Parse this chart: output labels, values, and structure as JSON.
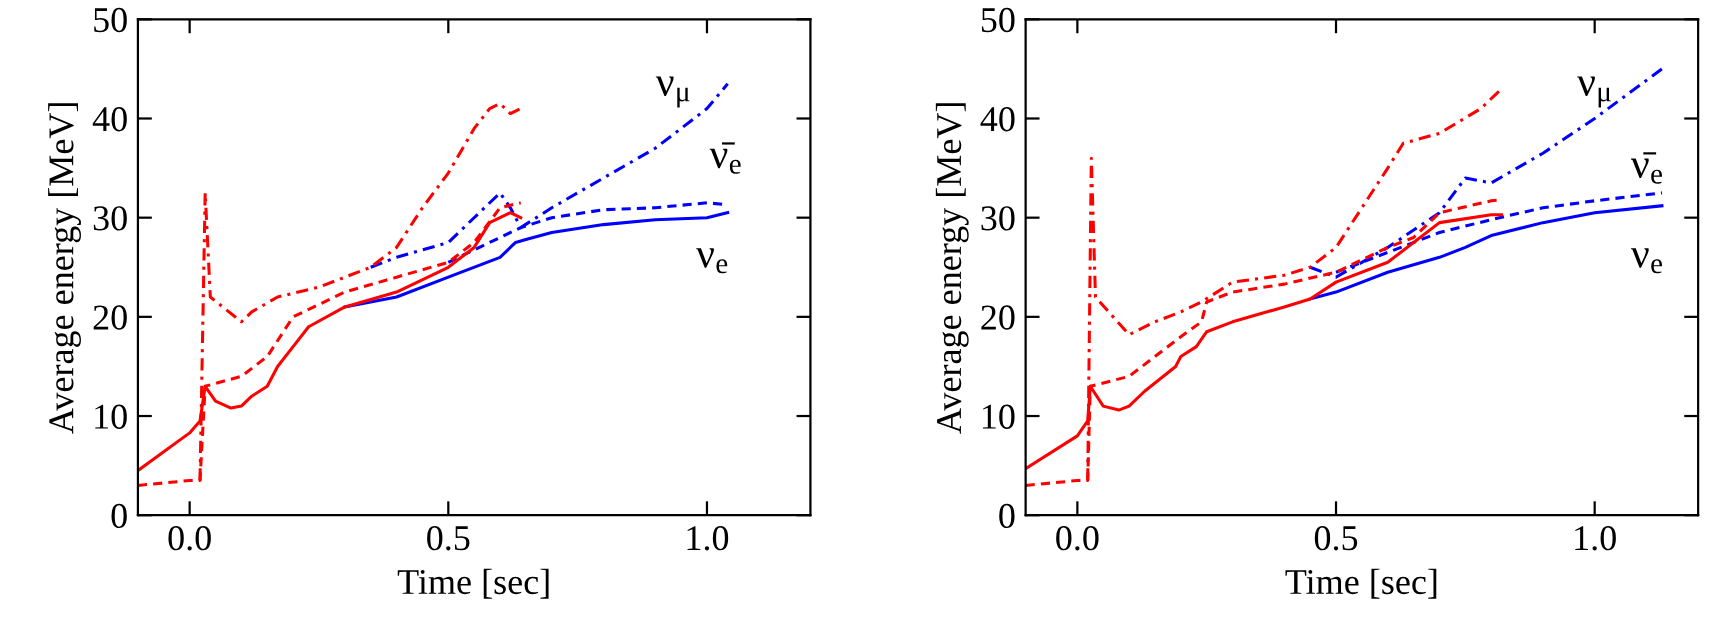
{
  "chart_data": [
    {
      "type": "line",
      "xlabel": "Time [sec]",
      "ylabel": "Average energy [MeV]",
      "xlim": [
        -0.1,
        1.2
      ],
      "ylim": [
        0,
        50
      ],
      "xticks": [
        {
          "value": 0.0,
          "label": "0.0"
        },
        {
          "value": 0.5,
          "label": "0.5"
        },
        {
          "value": 1.0,
          "label": "1.0"
        }
      ],
      "yticks": [
        0,
        10,
        20,
        30,
        40,
        50
      ],
      "grid": false,
      "legend": false,
      "annotations": [
        "ν$_{μ}$",
        "ν̄$_{e}$",
        "ν$_{e}$"
      ],
      "series": [
        {
          "color": "#0000ff",
          "line_style": "solid",
          "x": [
            0.3,
            0.4,
            0.5,
            0.6,
            0.63,
            0.65,
            0.7,
            0.8,
            0.9,
            1.0,
            1.04
          ],
          "values": [
            21,
            22,
            24,
            26,
            27.5,
            27.8,
            28.5,
            29.3,
            29.8,
            30,
            30.5
          ]
        },
        {
          "color": "#0000ff",
          "line_style": "dashed",
          "x": [
            0.5,
            0.6,
            0.64,
            0.7,
            0.8,
            0.9,
            1.0,
            1.04
          ],
          "values": [
            25.5,
            28,
            29,
            30,
            30.8,
            31,
            31.5,
            31.3
          ]
        },
        {
          "color": "#0000ff",
          "line_style": "dashdot",
          "x": [
            0.35,
            0.4,
            0.5,
            0.6,
            0.62,
            0.64,
            0.7,
            0.8,
            0.9,
            1.0,
            1.04
          ],
          "values": [
            25,
            26,
            27.5,
            32.5,
            31,
            29,
            31,
            34,
            37,
            41,
            43.5
          ]
        },
        {
          "color": "#ff0000",
          "line_style": "solid",
          "x": [
            -0.1,
            0.0,
            0.02,
            0.03,
            0.05,
            0.08,
            0.1,
            0.12,
            0.15,
            0.17,
            0.2,
            0.23,
            0.3,
            0.4,
            0.5,
            0.55,
            0.58,
            0.62,
            0.64
          ],
          "values": [
            4.5,
            8.3,
            9.5,
            13,
            11.5,
            10.8,
            11,
            12,
            13,
            15,
            17,
            19,
            21,
            22.5,
            25,
            27,
            29.5,
            30.5,
            30
          ]
        },
        {
          "color": "#ff0000",
          "line_style": "dashed",
          "x": [
            -0.1,
            0.0,
            0.02,
            0.03,
            0.1,
            0.15,
            0.2,
            0.3,
            0.4,
            0.5,
            0.55,
            0.6,
            0.64
          ],
          "values": [
            3,
            3.5,
            3.5,
            13,
            14,
            16,
            20,
            22.5,
            24,
            25.5,
            27.5,
            31,
            31.5
          ]
        },
        {
          "color": "#ff0000",
          "line_style": "dashdot",
          "x": [
            0.02,
            0.03,
            0.04,
            0.1,
            0.12,
            0.17,
            0.25,
            0.35,
            0.4,
            0.45,
            0.5,
            0.55,
            0.58,
            0.6,
            0.62,
            0.64
          ],
          "values": [
            3.5,
            32.5,
            22,
            19.5,
            20.5,
            22,
            23,
            25,
            27,
            31,
            34.5,
            39,
            41,
            41.5,
            40.5,
            41
          ]
        }
      ]
    },
    {
      "type": "line",
      "xlabel": "Time [sec]",
      "ylabel": "Average energy [MeV]",
      "xlim": [
        -0.1,
        1.2
      ],
      "ylim": [
        0,
        50
      ],
      "xticks": [
        {
          "value": 0.0,
          "label": "0.0"
        },
        {
          "value": 0.5,
          "label": "0.5"
        },
        {
          "value": 1.0,
          "label": "1.0"
        }
      ],
      "yticks": [
        0,
        10,
        20,
        30,
        40,
        50
      ],
      "grid": false,
      "legend": false,
      "annotations": [
        "ν$_{μ}$",
        "ν̄$_{e}$",
        "ν$_{e}$"
      ],
      "series": [
        {
          "color": "#0000ff",
          "line_style": "solid",
          "x": [
            0.45,
            0.5,
            0.6,
            0.7,
            0.75,
            0.8,
            0.9,
            1.0,
            1.13
          ],
          "values": [
            21.8,
            22.5,
            24.5,
            26,
            27,
            28.2,
            29.5,
            30.5,
            31.2
          ]
        },
        {
          "color": "#0000ff",
          "line_style": "dashed",
          "x": [
            0.5,
            0.6,
            0.7,
            0.8,
            0.9,
            1.0,
            1.13
          ],
          "values": [
            24.5,
            26.5,
            28.5,
            29.8,
            31,
            31.7,
            32.5
          ]
        },
        {
          "color": "#0000ff",
          "line_style": "dashdot",
          "x": [
            0.45,
            0.5,
            0.6,
            0.7,
            0.75,
            0.8,
            0.9,
            1.0,
            1.13
          ],
          "values": [
            25,
            24,
            27,
            30.5,
            34,
            33.5,
            36.5,
            40,
            45
          ]
        },
        {
          "color": "#ff0000",
          "line_style": "solid",
          "x": [
            -0.1,
            0.0,
            0.02,
            0.025,
            0.05,
            0.08,
            0.1,
            0.13,
            0.19,
            0.2,
            0.23,
            0.25,
            0.3,
            0.4,
            0.45,
            0.5,
            0.6,
            0.65,
            0.7,
            0.8,
            0.82
          ],
          "values": [
            4.7,
            8,
            9.5,
            13,
            11,
            10.6,
            11,
            12.5,
            15,
            16,
            17,
            18.5,
            19.5,
            21,
            21.8,
            23.5,
            25.5,
            27.5,
            29.5,
            30.3,
            30.3
          ]
        },
        {
          "color": "#ff0000",
          "line_style": "dashed",
          "x": [
            -0.1,
            0.0,
            0.02,
            0.025,
            0.1,
            0.2,
            0.24,
            0.25,
            0.3,
            0.4,
            0.5,
            0.6,
            0.65,
            0.7,
            0.8,
            0.82
          ],
          "values": [
            3,
            3.5,
            3.5,
            13,
            14,
            18,
            19.5,
            21.5,
            22.5,
            23.3,
            24.5,
            27,
            28,
            30.5,
            31.7,
            31.8
          ]
        },
        {
          "color": "#ff0000",
          "line_style": "dashdot",
          "x": [
            0.02,
            0.027,
            0.035,
            0.1,
            0.15,
            0.2,
            0.24,
            0.3,
            0.4,
            0.45,
            0.5,
            0.55,
            0.6,
            0.63,
            0.7,
            0.78,
            0.82
          ],
          "values": [
            3.5,
            36,
            22,
            18.2,
            19.5,
            20.5,
            21.5,
            23.5,
            24.2,
            25,
            27,
            31,
            35,
            37.5,
            38.5,
            41,
            43
          ]
        }
      ]
    }
  ]
}
